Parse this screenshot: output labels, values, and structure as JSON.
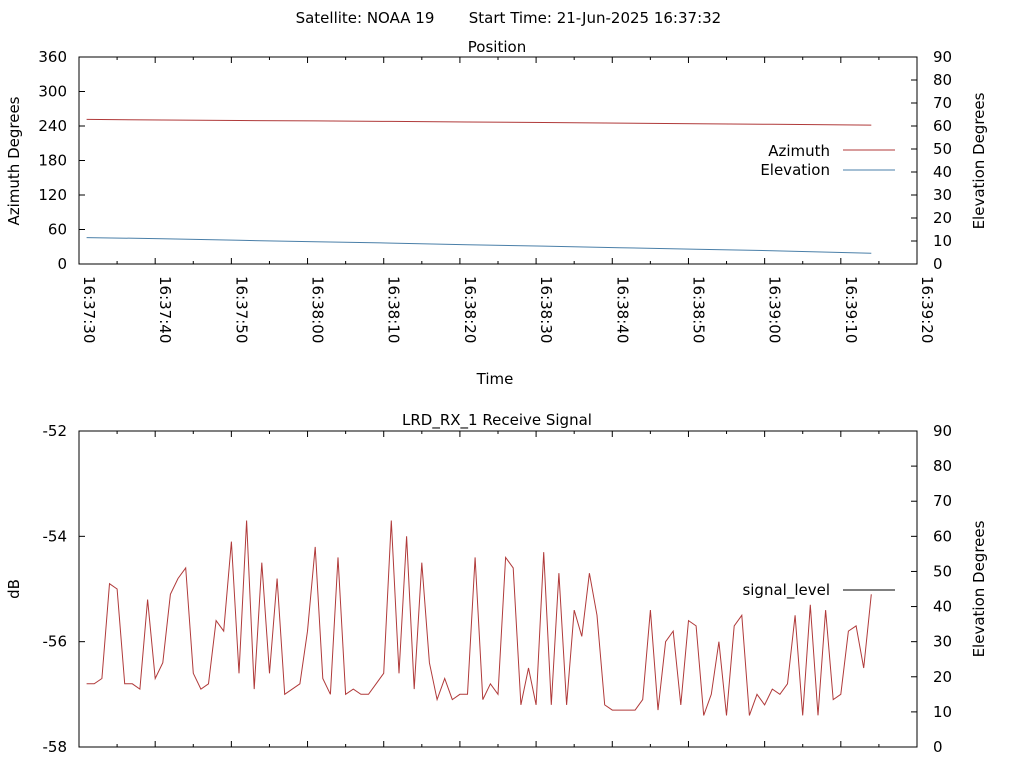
{
  "header": {
    "satellite_label": "Satellite: NOAA 19",
    "start_time_label": "Start Time: 21-Jun-2025 16:37:32"
  },
  "colors": {
    "azimuth": "#b03a3a",
    "elevation": "#4a7fa8",
    "signal": "#b03a3a",
    "legend_signal": "#000000"
  },
  "chart_data": [
    {
      "type": "line",
      "title": "Position",
      "xlabel": "Time",
      "ylabel": "Azimuth Degrees",
      "y2label": "Elevation Degrees",
      "x_ticks": [
        "16:37:30",
        "16:37:40",
        "16:37:50",
        "16:38:00",
        "16:38:10",
        "16:38:20",
        "16:38:30",
        "16:38:40",
        "16:38:50",
        "16:39:00",
        "16:39:10",
        "16:39:20"
      ],
      "y_ticks": [
        "0",
        "60",
        "120",
        "180",
        "240",
        "300",
        "360"
      ],
      "y2_ticks": [
        "0",
        "10",
        "20",
        "30",
        "40",
        "50",
        "60",
        "70",
        "80",
        "90"
      ],
      "xlim": [
        0,
        110
      ],
      "ylim": [
        0,
        360
      ],
      "y2lim": [
        0,
        90
      ],
      "legend_position": "right",
      "series": [
        {
          "name": "Azimuth",
          "axis": "left",
          "x": [
            1,
            11,
            21,
            31,
            41,
            51,
            61,
            71,
            81,
            91,
            104
          ],
          "values": [
            251.5,
            250.5,
            249.5,
            248.8,
            248,
            247,
            246,
            245,
            244,
            243,
            241.5
          ]
        },
        {
          "name": "Elevation",
          "axis": "right",
          "x": [
            1,
            11,
            21,
            31,
            41,
            51,
            61,
            71,
            81,
            91,
            104
          ],
          "values": [
            11.5,
            11,
            10.3,
            9.7,
            9.1,
            8.4,
            7.8,
            7.1,
            6.4,
            5.8,
            4.7
          ]
        }
      ]
    },
    {
      "type": "line",
      "title": "LRD_RX_1 Receive Signal",
      "ylabel": "dB",
      "y2label": "Elevation Degrees",
      "y_ticks": [
        "-52",
        "-54",
        "-56",
        "-58"
      ],
      "y2_ticks": [
        "0",
        "10",
        "20",
        "30",
        "40",
        "50",
        "60",
        "70",
        "80",
        "90"
      ],
      "xlim": [
        0,
        110
      ],
      "ylim": [
        -58,
        -52
      ],
      "y2lim": [
        0,
        90
      ],
      "legend_position": "right",
      "series": [
        {
          "name": "signal_level",
          "x": [
            1,
            2,
            3,
            4,
            5,
            6,
            7,
            8,
            9,
            10,
            11,
            12,
            13,
            14,
            15,
            16,
            17,
            18,
            19,
            20,
            21,
            22,
            23,
            24,
            25,
            26,
            27,
            28,
            29,
            30,
            31,
            32,
            33,
            34,
            35,
            36,
            37,
            38,
            39,
            40,
            41,
            42,
            43,
            44,
            45,
            46,
            47,
            48,
            49,
            50,
            51,
            52,
            53,
            54,
            55,
            56,
            57,
            58,
            59,
            60,
            61,
            62,
            63,
            64,
            65,
            66,
            67,
            68,
            69,
            70,
            71,
            72,
            73,
            74,
            75,
            76,
            77,
            78,
            79,
            80,
            81,
            82,
            83,
            84,
            85,
            86,
            87,
            88,
            89,
            90,
            91,
            92,
            93,
            94,
            95,
            96,
            97,
            98,
            99,
            100,
            101,
            102,
            103,
            104
          ],
          "values": [
            -56.8,
            -56.8,
            -56.7,
            -54.9,
            -55.0,
            -56.8,
            -56.8,
            -56.9,
            -55.2,
            -56.7,
            -56.4,
            -55.1,
            -54.8,
            -54.6,
            -56.6,
            -56.9,
            -56.8,
            -55.6,
            -55.8,
            -54.1,
            -56.6,
            -53.7,
            -56.9,
            -54.5,
            -56.6,
            -54.8,
            -57.0,
            -56.9,
            -56.8,
            -55.8,
            -54.2,
            -56.7,
            -57.0,
            -54.4,
            -57.0,
            -56.9,
            -57.0,
            -57.0,
            -56.8,
            -56.6,
            -53.7,
            -56.6,
            -54.0,
            -56.9,
            -54.5,
            -56.4,
            -57.1,
            -56.7,
            -57.1,
            -57.0,
            -57.0,
            -54.4,
            -57.1,
            -56.8,
            -57.0,
            -54.4,
            -54.6,
            -57.2,
            -56.5,
            -57.2,
            -54.3,
            -57.2,
            -54.7,
            -57.2,
            -55.4,
            -55.9,
            -54.7,
            -55.5,
            -57.2,
            -57.3,
            -57.3,
            -57.3,
            -57.3,
            -57.1,
            -55.4,
            -57.3,
            -56.0,
            -55.8,
            -57.2,
            -55.6,
            -55.7,
            -57.4,
            -57.0,
            -56.0,
            -57.4,
            -55.7,
            -55.5,
            -57.4,
            -57.0,
            -57.2,
            -56.9,
            -57.0,
            -56.8,
            -55.5,
            -57.4,
            -55.3,
            -57.4,
            -55.4,
            -57.1,
            -57.0,
            -55.8,
            -55.7,
            -56.5,
            -55.1
          ]
        }
      ]
    }
  ]
}
